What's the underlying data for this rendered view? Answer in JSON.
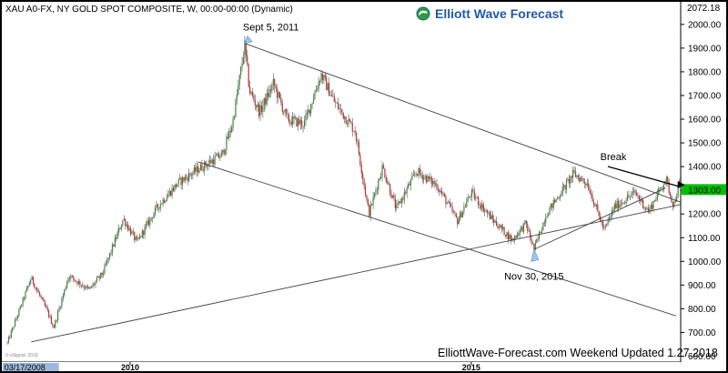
{
  "header": {
    "title": "XAU A0-FX, NY GOLD SPOT COMPOSITE, W, 00:00-00:00 (Dynamic)",
    "brand": "Elliott Wave Forecast",
    "footer": "ElliottWave-Forecast.com Weekend Updated 1.27.2018",
    "watermark": "© eSignal, 2018"
  },
  "chart_data": {
    "type": "candlestick",
    "title": "XAU A0-FX, NY GOLD SPOT COMPOSITE, W, 00:00-00:00 (Dynamic)",
    "ylim": [
      575,
      2080
    ],
    "y_ticks": [
      600,
      700,
      800,
      900,
      1000,
      1100,
      1200,
      1300,
      1400,
      1500,
      1600,
      1700,
      1800,
      1900,
      2000
    ],
    "y_tick_labels": [
      "600.00",
      "700.00",
      "800.00",
      "900.00",
      "1000.00",
      "1100.00",
      "1200.00",
      "1300.00",
      "1400.00",
      "1500.00",
      "1600.00",
      "1700.00",
      "1800.00",
      "1900.00",
      "2000.00"
    ],
    "x_range_year": [
      2008.2,
      2018.07
    ],
    "x_ticks": [
      {
        "label": "03/17/2008",
        "year": 2008.21
      },
      {
        "label": "2010",
        "year": 2010.0
      },
      {
        "label": "2015",
        "year": 2015.0
      }
    ],
    "current_price": {
      "label": "1303.00",
      "value": 1303,
      "color": "#00c000"
    },
    "top_price": {
      "label": "2072.18",
      "value": 2072.18
    },
    "price_path": [
      [
        2008.2,
        655
      ],
      [
        2008.55,
        930
      ],
      [
        2008.8,
        780
      ],
      [
        2008.88,
        720
      ],
      [
        2009.1,
        940
      ],
      [
        2009.4,
        880
      ],
      [
        2009.6,
        950
      ],
      [
        2009.9,
        1180
      ],
      [
        2010.1,
        1080
      ],
      [
        2010.4,
        1230
      ],
      [
        2010.7,
        1330
      ],
      [
        2011.0,
        1390
      ],
      [
        2011.35,
        1450
      ],
      [
        2011.5,
        1580
      ],
      [
        2011.68,
        1910
      ],
      [
        2011.75,
        1720
      ],
      [
        2011.9,
        1630
      ],
      [
        2012.1,
        1750
      ],
      [
        2012.3,
        1600
      ],
      [
        2012.55,
        1580
      ],
      [
        2012.8,
        1790
      ],
      [
        2013.0,
        1670
      ],
      [
        2013.3,
        1550
      ],
      [
        2013.5,
        1200
      ],
      [
        2013.7,
        1400
      ],
      [
        2013.9,
        1220
      ],
      [
        2014.2,
        1380
      ],
      [
        2014.5,
        1320
      ],
      [
        2014.8,
        1170
      ],
      [
        2015.0,
        1290
      ],
      [
        2015.3,
        1180
      ],
      [
        2015.6,
        1090
      ],
      [
        2015.8,
        1160
      ],
      [
        2015.92,
        1050
      ],
      [
        2016.1,
        1200
      ],
      [
        2016.5,
        1370
      ],
      [
        2016.7,
        1330
      ],
      [
        2016.95,
        1130
      ],
      [
        2017.1,
        1230
      ],
      [
        2017.4,
        1290
      ],
      [
        2017.6,
        1210
      ],
      [
        2017.85,
        1350
      ],
      [
        2017.95,
        1250
      ],
      [
        2017.97,
        1240
      ],
      [
        2018.07,
        1350
      ]
    ],
    "seed_note": "",
    "lines": [
      {
        "from": [
          2011.68,
          1920
        ],
        "to": [
          2018.07,
          1250
        ]
      },
      {
        "from": [
          2008.55,
          660
        ],
        "to": [
          2018.07,
          1240
        ]
      },
      {
        "from": [
          2011.0,
          1420
        ],
        "to": [
          2018.0,
          770
        ]
      },
      {
        "from": [
          2015.92,
          1050
        ],
        "to": [
          2017.85,
          1310
        ]
      }
    ],
    "annotations": [
      {
        "text": "Sept 5, 2011",
        "year": 2011.68,
        "price": 1920,
        "pos": "above"
      },
      {
        "text": "Nov 30, 2015",
        "year": 2015.92,
        "price": 1050,
        "pos": "below"
      },
      {
        "text": "Break",
        "year": 2018.0,
        "price": 1300,
        "pos": "arrow"
      }
    ]
  }
}
